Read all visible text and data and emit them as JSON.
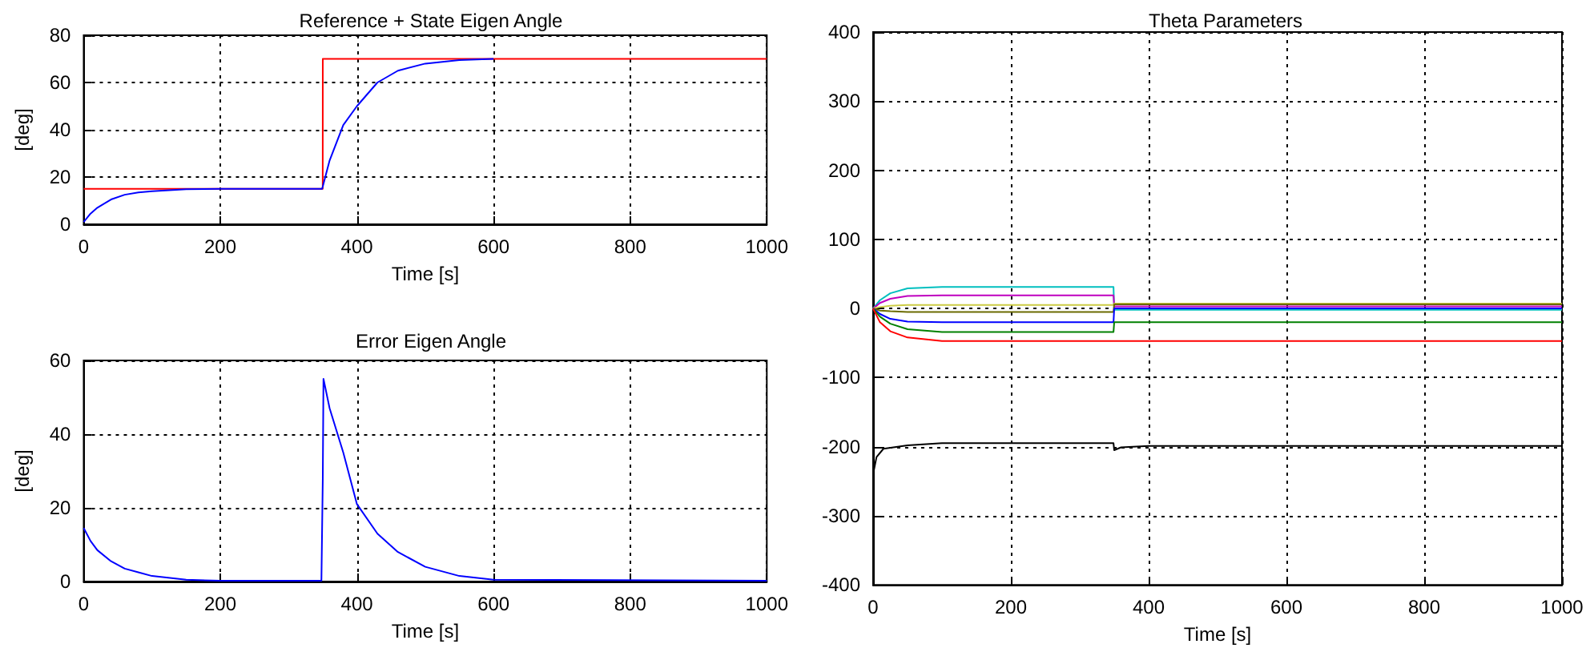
{
  "chart_data": [
    {
      "type": "line",
      "title": "Reference + State Eigen Angle",
      "xlabel": "Time [s]",
      "ylabel": "[deg]",
      "xlim": [
        0,
        1000
      ],
      "xticks": [
        0,
        200,
        400,
        600,
        800,
        1000
      ],
      "ylim": [
        0,
        80
      ],
      "yticks": [
        0,
        20,
        40,
        60,
        80
      ],
      "grid": true,
      "series": [
        {
          "color": "#ff0000",
          "x": [
            0,
            349.9,
            350,
            1000
          ],
          "values": [
            15,
            15,
            70,
            70
          ]
        },
        {
          "color": "#0000ff",
          "x": [
            0,
            10,
            20,
            40,
            60,
            80,
            100,
            150,
            200,
            349,
            350,
            360,
            380,
            400,
            430,
            460,
            500,
            550,
            600
          ],
          "values": [
            1,
            4.5,
            7,
            10.5,
            12.5,
            13.5,
            14,
            14.8,
            15,
            15,
            16,
            27,
            42,
            50,
            60,
            65,
            68,
            69.5,
            70
          ]
        }
      ]
    },
    {
      "type": "line",
      "title": "Error Eigen Angle",
      "xlabel": "Time [s]",
      "ylabel": "[deg]",
      "xlim": [
        0,
        1000
      ],
      "xticks": [
        0,
        200,
        400,
        600,
        800,
        1000
      ],
      "ylim": [
        0,
        60
      ],
      "yticks": [
        0,
        20,
        40,
        60
      ],
      "grid": true,
      "series": [
        {
          "color": "#0000ff",
          "x": [
            0,
            10,
            20,
            40,
            60,
            80,
            100,
            150,
            200,
            348,
            350,
            351,
            360,
            380,
            400,
            430,
            460,
            500,
            550,
            600,
            1000
          ],
          "values": [
            14.5,
            11,
            8.5,
            5.5,
            3.5,
            2.5,
            1.5,
            0.5,
            0.2,
            0.2,
            28,
            55,
            47,
            35,
            21,
            13,
            8,
            4,
            1.5,
            0.5,
            0.2
          ]
        }
      ]
    },
    {
      "type": "line",
      "title": "Theta Parameters",
      "xlabel": "Time [s]",
      "xlim": [
        0,
        1000
      ],
      "xticks": [
        0,
        200,
        400,
        600,
        800,
        1000
      ],
      "ylim": [
        -400,
        400
      ],
      "yticks": [
        -400,
        -300,
        -200,
        -100,
        0,
        100,
        200,
        300,
        400
      ],
      "grid": true,
      "series": [
        {
          "color": "#00bfbf",
          "x": [
            0,
            10,
            25,
            50,
            100,
            349,
            350,
            1000
          ],
          "values": [
            0,
            12,
            22,
            29,
            31,
            31,
            -2,
            -2
          ]
        },
        {
          "color": "#bf00bf",
          "x": [
            0,
            10,
            25,
            50,
            100,
            349,
            350,
            1000
          ],
          "values": [
            0,
            8,
            14,
            18,
            19,
            19,
            3,
            3
          ]
        },
        {
          "color": "#cccc44",
          "x": [
            0,
            10,
            25,
            50,
            100,
            349,
            350,
            1000
          ],
          "values": [
            0,
            2,
            4,
            5,
            5,
            5,
            7,
            7
          ]
        },
        {
          "color": "#6b6b00",
          "x": [
            0,
            10,
            25,
            50,
            100,
            349,
            350,
            1000
          ],
          "values": [
            0,
            -3,
            -4,
            -5,
            -5,
            -5,
            6,
            6
          ]
        },
        {
          "color": "#0000ff",
          "x": [
            0,
            10,
            25,
            50,
            100,
            349,
            350,
            1000
          ],
          "values": [
            0,
            -8,
            -15,
            -19,
            -20,
            -20,
            0,
            0
          ]
        },
        {
          "color": "#008000",
          "x": [
            0,
            10,
            25,
            50,
            100,
            349,
            350,
            1000
          ],
          "values": [
            0,
            -12,
            -22,
            -30,
            -34,
            -34,
            -20,
            -20
          ]
        },
        {
          "color": "#ff0000",
          "x": [
            0,
            10,
            25,
            50,
            100,
            349,
            350,
            1000
          ],
          "values": [
            0,
            -20,
            -33,
            -42,
            -47,
            -47,
            -47,
            -47
          ]
        },
        {
          "color": "#000000",
          "x": [
            0,
            5,
            15,
            50,
            100,
            349,
            350,
            360,
            400,
            1000
          ],
          "values": [
            -240,
            -215,
            -203,
            -198,
            -195,
            -195,
            -205,
            -201,
            -199,
            -199
          ]
        }
      ]
    }
  ]
}
